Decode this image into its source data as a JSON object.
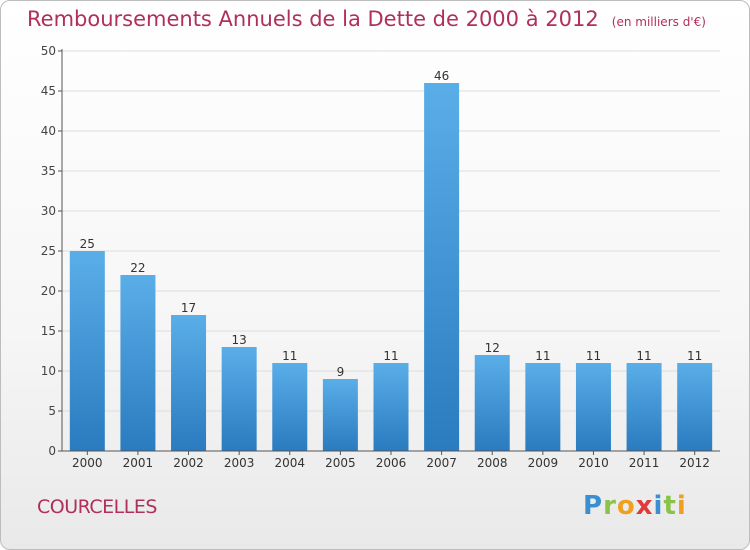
{
  "header": {
    "title": "Remboursements Annuels de la Dette de 2000 à 2012",
    "subtitle": "(en milliers d'€)"
  },
  "commune": "COURCELLES",
  "brand": {
    "letters": [
      "P",
      "r",
      "o",
      "x",
      "i",
      "t",
      "i"
    ],
    "colors": [
      "#3a8fd1",
      "#8bc34a",
      "#f0a020",
      "#e03a3a",
      "#3a8fd1",
      "#8bc34a",
      "#f0a020"
    ]
  },
  "colors": {
    "text_accent": "#b0305a",
    "bar_top": "#5aaee8",
    "bar_bottom": "#2a7bbf",
    "grid": "#dddddd",
    "axis": "#555555"
  },
  "chart_data": {
    "type": "bar",
    "categories": [
      "2000",
      "2001",
      "2002",
      "2003",
      "2004",
      "2005",
      "2006",
      "2007",
      "2008",
      "2009",
      "2010",
      "2011",
      "2012"
    ],
    "values": [
      25,
      22,
      17,
      13,
      11,
      9,
      11,
      46,
      12,
      11,
      11,
      11,
      11
    ],
    "ylim": [
      0,
      50
    ],
    "yticks": [
      0,
      5,
      10,
      15,
      20,
      25,
      30,
      35,
      40,
      45,
      50
    ],
    "grid": true,
    "data_labels": true
  }
}
